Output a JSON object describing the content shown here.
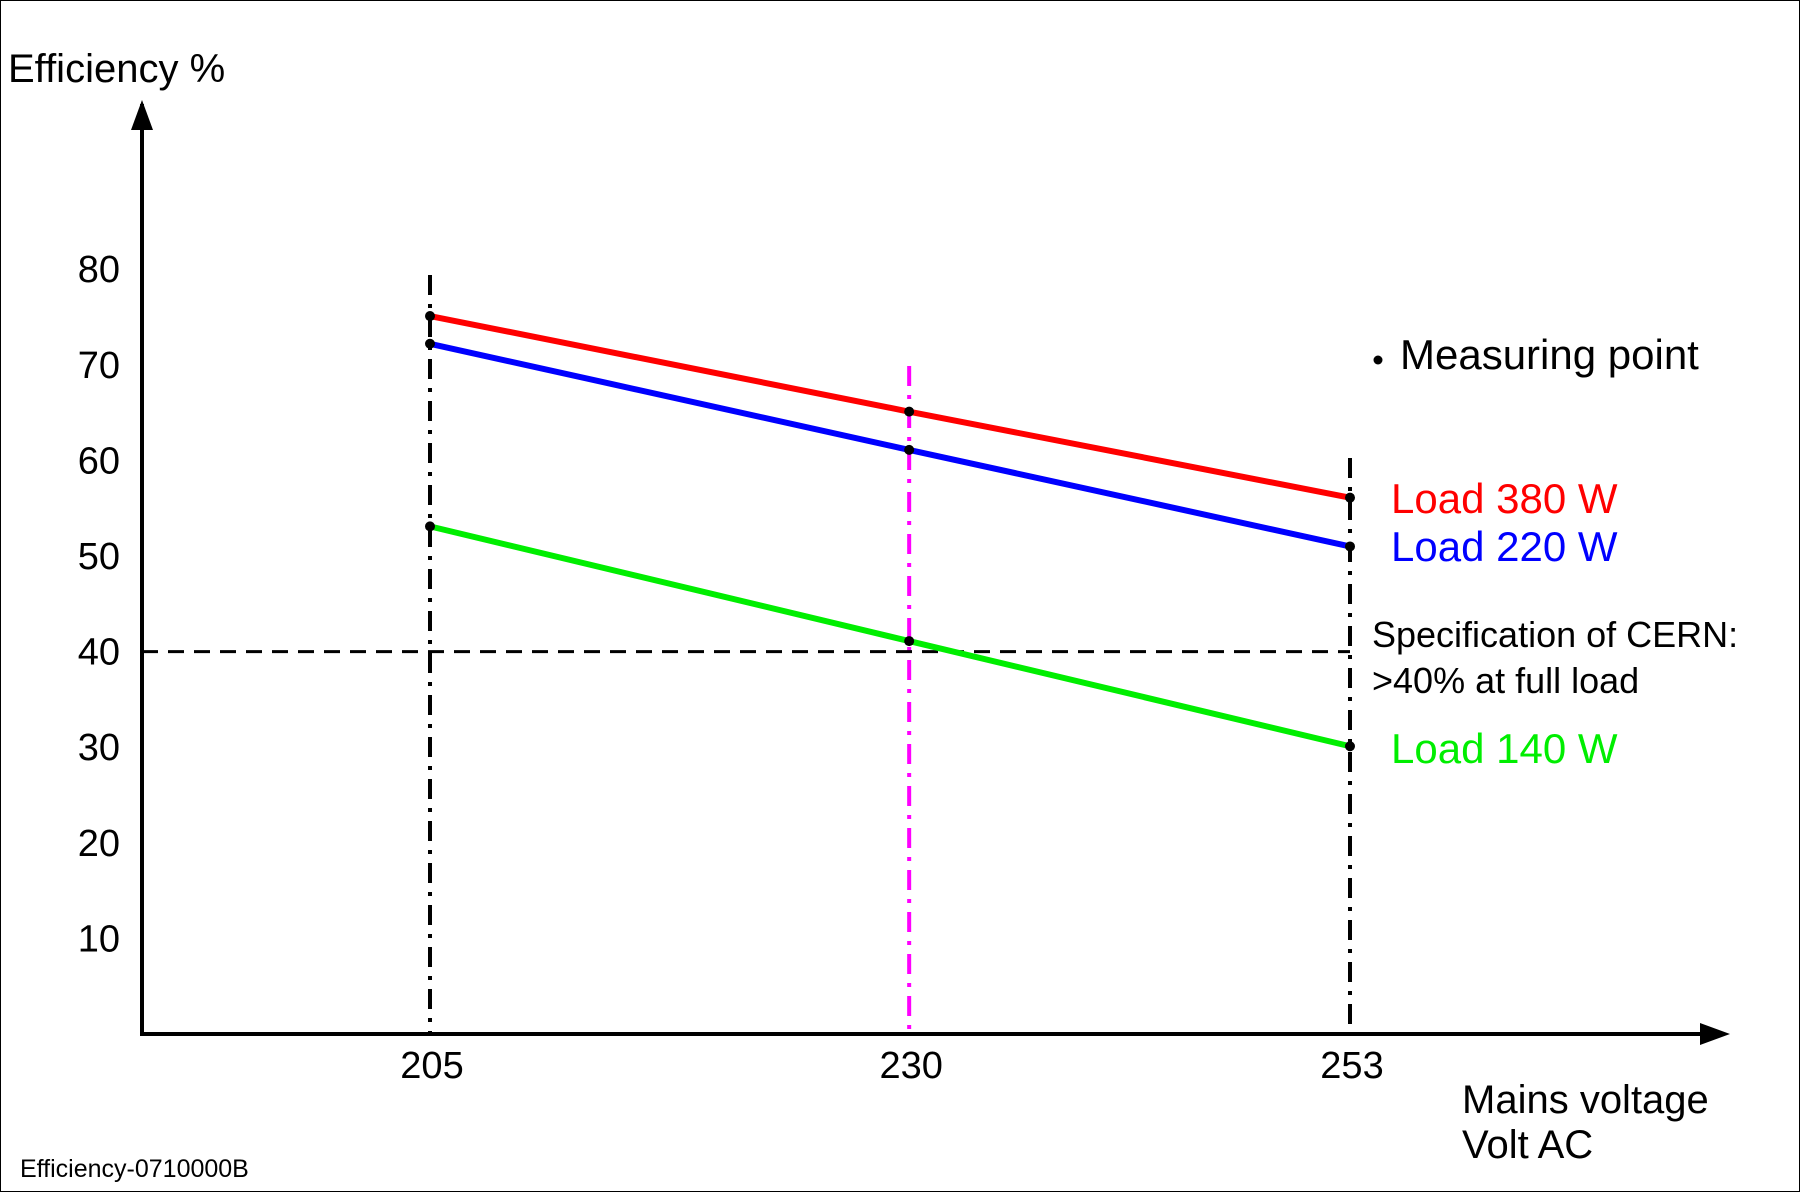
{
  "chart_data": {
    "type": "line",
    "ylabel": "Efficiency %",
    "xlabel_lines": [
      "Mains voltage",
      "Volt AC"
    ],
    "x_ticks": [
      {
        "label": "205",
        "value": 205,
        "color": "#000000"
      },
      {
        "label": "230",
        "value": 230,
        "color": "#ff00ff"
      },
      {
        "label": "253",
        "value": 253,
        "color": "#000000"
      }
    ],
    "y_ticks": [
      "10",
      "20",
      "30",
      "40",
      "50",
      "60",
      "70",
      "80"
    ],
    "series": [
      {
        "name": "Load 380 W",
        "color": "#ff0000",
        "x": [
          205,
          230,
          253
        ],
        "y": [
          75.1,
          65.1,
          56.1
        ]
      },
      {
        "name": "Load 220 W",
        "color": "#0000ff",
        "x": [
          205,
          230,
          253
        ],
        "y": [
          72.2,
          61.1,
          51.0
        ]
      },
      {
        "name": "Load 140 W",
        "color": "#00ee00",
        "x": [
          205,
          230,
          253
        ],
        "y": [
          53.1,
          41.1,
          30.1
        ]
      }
    ],
    "reference_line": {
      "y": 40,
      "color": "#000000"
    },
    "legend_marker_label": "Measuring point",
    "spec_note": [
      "Specification of CERN:",
      ">40% at full load"
    ],
    "figure_code": "Efficiency-0710000B"
  }
}
